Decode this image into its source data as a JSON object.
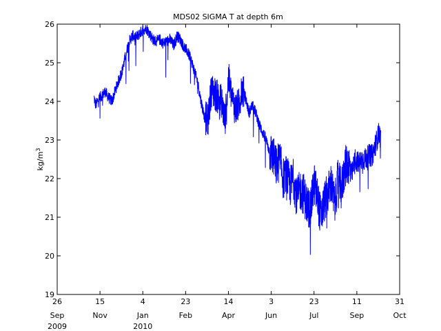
{
  "chart_data": {
    "type": "line",
    "title": "MDS02 SIGMA T at depth 6m",
    "xlabel": "",
    "ylabel": "kg/m",
    "ylabel_sup": "3",
    "ylim": [
      19,
      26
    ],
    "yticks": [
      19,
      20,
      21,
      22,
      23,
      24,
      25,
      26
    ],
    "xlim": [
      "2009-09-26",
      "2010-10-31"
    ],
    "xticks": [
      {
        "date": "2009-09-26",
        "day": "26",
        "month": "Sep",
        "year": "2009"
      },
      {
        "date": "2009-11-15",
        "day": "15",
        "month": "Nov",
        "year": ""
      },
      {
        "date": "2010-01-04",
        "day": "4",
        "month": "Jan",
        "year": "2010"
      },
      {
        "date": "2010-02-23",
        "day": "23",
        "month": "Feb",
        "year": ""
      },
      {
        "date": "2010-04-14",
        "day": "14",
        "month": "Apr",
        "year": ""
      },
      {
        "date": "2010-06-03",
        "day": "3",
        "month": "Jun",
        "year": ""
      },
      {
        "date": "2010-07-23",
        "day": "23",
        "month": "Jul",
        "year": ""
      },
      {
        "date": "2010-09-11",
        "day": "11",
        "month": "Sep",
        "year": ""
      },
      {
        "date": "2010-10-31",
        "day": "31",
        "month": "Oct",
        "year": ""
      }
    ],
    "grid": false,
    "series": [
      {
        "color": "#0000ff",
        "x": [
          "2009-11-08",
          "2009-11-10",
          "2009-11-13",
          "2009-11-17",
          "2009-11-21",
          "2009-11-25",
          "2009-11-29",
          "2009-12-03",
          "2009-12-07",
          "2009-12-11",
          "2009-12-15",
          "2009-12-19",
          "2009-12-23",
          "2009-12-27",
          "2009-12-31",
          "2010-01-04",
          "2010-01-08",
          "2010-01-12",
          "2010-01-16",
          "2010-01-20",
          "2010-01-24",
          "2010-01-28",
          "2010-02-01",
          "2010-02-05",
          "2010-02-09",
          "2010-02-13",
          "2010-02-17",
          "2010-02-21",
          "2010-02-25",
          "2010-03-01",
          "2010-03-05",
          "2010-03-09",
          "2010-03-13",
          "2010-03-17",
          "2010-03-21",
          "2010-03-25",
          "2010-03-29",
          "2010-04-02",
          "2010-04-06",
          "2010-04-10",
          "2010-04-14",
          "2010-04-18",
          "2010-04-22",
          "2010-04-26",
          "2010-04-30",
          "2010-05-04",
          "2010-05-08",
          "2010-05-12",
          "2010-05-16",
          "2010-05-20",
          "2010-05-24",
          "2010-05-28",
          "2010-06-01",
          "2010-06-05",
          "2010-06-09",
          "2010-06-13",
          "2010-06-17",
          "2010-06-21",
          "2010-06-25",
          "2010-06-29",
          "2010-07-03",
          "2010-07-07",
          "2010-07-11",
          "2010-07-15",
          "2010-07-19",
          "2010-07-23",
          "2010-07-27",
          "2010-07-31",
          "2010-08-04",
          "2010-08-08",
          "2010-08-12",
          "2010-08-16",
          "2010-08-20",
          "2010-08-24",
          "2010-08-28",
          "2010-09-01",
          "2010-09-05",
          "2010-09-09",
          "2010-09-13",
          "2010-09-17",
          "2010-09-21",
          "2010-09-25",
          "2010-09-29",
          "2010-10-03",
          "2010-10-07",
          "2010-10-09"
        ],
        "values": [
          24.1,
          23.9,
          24.05,
          24.15,
          24.25,
          24.1,
          24.0,
          24.3,
          24.55,
          24.8,
          25.2,
          25.55,
          25.7,
          25.65,
          25.75,
          25.85,
          25.9,
          25.75,
          25.6,
          25.55,
          25.6,
          25.5,
          25.55,
          25.6,
          25.45,
          25.7,
          25.6,
          25.4,
          25.3,
          25.1,
          24.8,
          24.5,
          24.0,
          23.6,
          23.5,
          24.3,
          24.2,
          24.1,
          24.0,
          23.5,
          24.6,
          24.1,
          23.8,
          23.9,
          24.3,
          24.1,
          23.7,
          23.9,
          23.7,
          23.4,
          23.2,
          23.0,
          22.7,
          22.6,
          22.3,
          22.5,
          22.0,
          22.1,
          21.8,
          22.0,
          21.5,
          21.7,
          21.6,
          21.3,
          21.2,
          21.9,
          21.5,
          21.0,
          21.4,
          21.6,
          21.9,
          21.3,
          22.0,
          21.7,
          22.3,
          22.4,
          22.1,
          22.5,
          22.4,
          22.5,
          22.5,
          22.6,
          22.6,
          22.9,
          23.2,
          23.0
        ]
      }
    ]
  }
}
